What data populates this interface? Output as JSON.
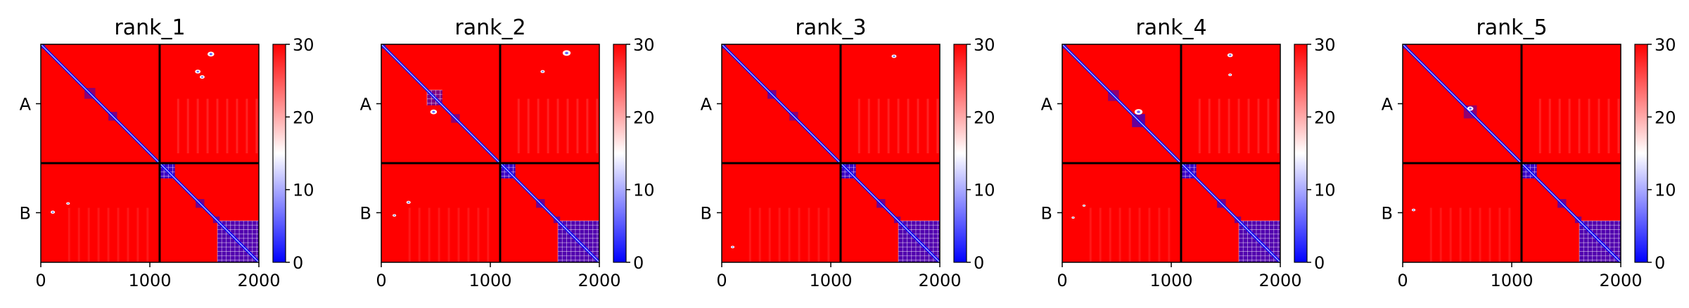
{
  "chart_data": [
    {
      "type": "heatmap",
      "title": "rank_1",
      "xticks": [
        0,
        1000,
        2000
      ],
      "xlim": [
        0,
        2000
      ],
      "ylim": [
        0,
        2000
      ],
      "y_categories": [
        "A",
        "B"
      ],
      "boundary": 1090,
      "colorbar": {
        "min": 0,
        "max": 30,
        "ticks": [
          0,
          10,
          20,
          30
        ],
        "colormap": [
          "#0000ff",
          "#ffffff",
          "#ff0000"
        ]
      },
      "high_color": "#ff0000",
      "low_color": "#0000ff",
      "diagonal_blocks": [
        {
          "start": 0,
          "end": 40,
          "level": 0.6
        },
        {
          "start": 400,
          "end": 500,
          "level": 0.5
        },
        {
          "start": 620,
          "end": 700,
          "level": 0.6
        },
        {
          "start": 1090,
          "end": 1230,
          "level": 0.9
        },
        {
          "start": 1420,
          "end": 1500,
          "level": 0.6
        },
        {
          "start": 1580,
          "end": 1640,
          "level": 0.6
        },
        {
          "start": 1620,
          "end": 2000,
          "level": 0.8
        }
      ],
      "spots": [
        {
          "x": 1560,
          "y": 90,
          "r": 22,
          "color": "#ffffff"
        },
        {
          "x": 1440,
          "y": 250,
          "r": 18,
          "color": "#ffffff"
        },
        {
          "x": 1480,
          "y": 300,
          "r": 16,
          "color": "#ffffff"
        },
        {
          "x": 110,
          "y": 1540,
          "r": 14,
          "color": "#ffffff"
        },
        {
          "x": 250,
          "y": 1460,
          "r": 12,
          "color": "#ffffff"
        }
      ]
    },
    {
      "type": "heatmap",
      "title": "rank_2",
      "xticks": [
        0,
        1000,
        2000
      ],
      "xlim": [
        0,
        2000
      ],
      "ylim": [
        0,
        2000
      ],
      "y_categories": [
        "A",
        "B"
      ],
      "boundary": 1090,
      "colorbar": {
        "min": 0,
        "max": 30,
        "ticks": [
          0,
          10,
          20,
          30
        ],
        "colormap": [
          "#0000ff",
          "#ffffff",
          "#ff0000"
        ]
      },
      "high_color": "#ff0000",
      "low_color": "#0000ff",
      "diagonal_blocks": [
        {
          "start": 0,
          "end": 40,
          "level": 0.6
        },
        {
          "start": 420,
          "end": 560,
          "level": 0.6
        },
        {
          "start": 640,
          "end": 720,
          "level": 0.5
        },
        {
          "start": 1090,
          "end": 1230,
          "level": 0.9
        },
        {
          "start": 1420,
          "end": 1500,
          "level": 0.6
        },
        {
          "start": 1580,
          "end": 1640,
          "level": 0.6
        },
        {
          "start": 1620,
          "end": 2000,
          "level": 0.8
        }
      ],
      "spots": [
        {
          "x": 1700,
          "y": 80,
          "r": 26,
          "color": "#ffffff"
        },
        {
          "x": 1480,
          "y": 250,
          "r": 14,
          "color": "#ffffff"
        },
        {
          "x": 480,
          "y": 620,
          "r": 22,
          "color": "#ffffff"
        },
        {
          "x": 250,
          "y": 1450,
          "r": 14,
          "color": "#ffffff"
        },
        {
          "x": 120,
          "y": 1570,
          "r": 12,
          "color": "#ffffff"
        }
      ]
    },
    {
      "type": "heatmap",
      "title": "rank_3",
      "xticks": [
        0,
        1000,
        2000
      ],
      "xlim": [
        0,
        2000
      ],
      "ylim": [
        0,
        2000
      ],
      "y_categories": [
        "A",
        "B"
      ],
      "boundary": 1090,
      "colorbar": {
        "min": 0,
        "max": 30,
        "ticks": [
          0,
          10,
          20,
          30
        ],
        "colormap": [
          "#0000ff",
          "#ffffff",
          "#ff0000"
        ]
      },
      "high_color": "#ff0000",
      "low_color": "#0000ff",
      "diagonal_blocks": [
        {
          "start": 0,
          "end": 40,
          "level": 0.6
        },
        {
          "start": 420,
          "end": 500,
          "level": 0.6
        },
        {
          "start": 620,
          "end": 700,
          "level": 0.5
        },
        {
          "start": 1090,
          "end": 1230,
          "level": 0.9
        },
        {
          "start": 1420,
          "end": 1500,
          "level": 0.6
        },
        {
          "start": 1580,
          "end": 1640,
          "level": 0.6
        },
        {
          "start": 1620,
          "end": 2000,
          "level": 0.8
        }
      ],
      "spots": [
        {
          "x": 1580,
          "y": 110,
          "r": 16,
          "color": "#ffffff"
        },
        {
          "x": 100,
          "y": 1860,
          "r": 12,
          "color": "#ffffff"
        }
      ]
    },
    {
      "type": "heatmap",
      "title": "rank_4",
      "xticks": [
        0,
        1000,
        2000
      ],
      "xlim": [
        0,
        2000
      ],
      "ylim": [
        0,
        2000
      ],
      "y_categories": [
        "A",
        "B"
      ],
      "boundary": 1090,
      "colorbar": {
        "min": 0,
        "max": 30,
        "ticks": [
          0,
          10,
          20,
          30
        ],
        "colormap": [
          "#0000ff",
          "#ffffff",
          "#ff0000"
        ]
      },
      "high_color": "#ff0000",
      "low_color": "#0000ff",
      "diagonal_blocks": [
        {
          "start": 0,
          "end": 40,
          "level": 0.6
        },
        {
          "start": 420,
          "end": 520,
          "level": 0.5
        },
        {
          "start": 640,
          "end": 760,
          "level": 0.7
        },
        {
          "start": 1090,
          "end": 1230,
          "level": 0.9
        },
        {
          "start": 1420,
          "end": 1500,
          "level": 0.6
        },
        {
          "start": 1580,
          "end": 1640,
          "level": 0.6
        },
        {
          "start": 1620,
          "end": 2000,
          "level": 0.8
        }
      ],
      "spots": [
        {
          "x": 1540,
          "y": 100,
          "r": 18,
          "color": "#ffffff"
        },
        {
          "x": 1540,
          "y": 280,
          "r": 12,
          "color": "#ffffff"
        },
        {
          "x": 700,
          "y": 620,
          "r": 26,
          "color": "#ffffff"
        },
        {
          "x": 200,
          "y": 1480,
          "r": 10,
          "color": "#ffffff"
        },
        {
          "x": 100,
          "y": 1590,
          "r": 10,
          "color": "#ffffff"
        }
      ]
    },
    {
      "type": "heatmap",
      "title": "rank_5",
      "xticks": [
        0,
        1000,
        2000
      ],
      "xlim": [
        0,
        2000
      ],
      "ylim": [
        0,
        2000
      ],
      "y_categories": [
        "A",
        "B"
      ],
      "boundary": 1090,
      "colorbar": {
        "min": 0,
        "max": 30,
        "ticks": [
          0,
          10,
          20,
          30
        ],
        "colormap": [
          "#0000ff",
          "#ffffff",
          "#ff0000"
        ]
      },
      "high_color": "#ff0000",
      "low_color": "#0000ff",
      "diagonal_blocks": [
        {
          "start": 0,
          "end": 40,
          "level": 0.6
        },
        {
          "start": 560,
          "end": 680,
          "level": 0.5
        },
        {
          "start": 1090,
          "end": 1230,
          "level": 0.9
        },
        {
          "start": 1420,
          "end": 1500,
          "level": 0.6
        },
        {
          "start": 1580,
          "end": 1640,
          "level": 0.6
        },
        {
          "start": 1620,
          "end": 2000,
          "level": 0.8
        }
      ],
      "spots": [
        {
          "x": 620,
          "y": 590,
          "r": 20,
          "color": "#ffffff"
        },
        {
          "x": 100,
          "y": 1520,
          "r": 12,
          "color": "#ffffff"
        }
      ]
    }
  ]
}
